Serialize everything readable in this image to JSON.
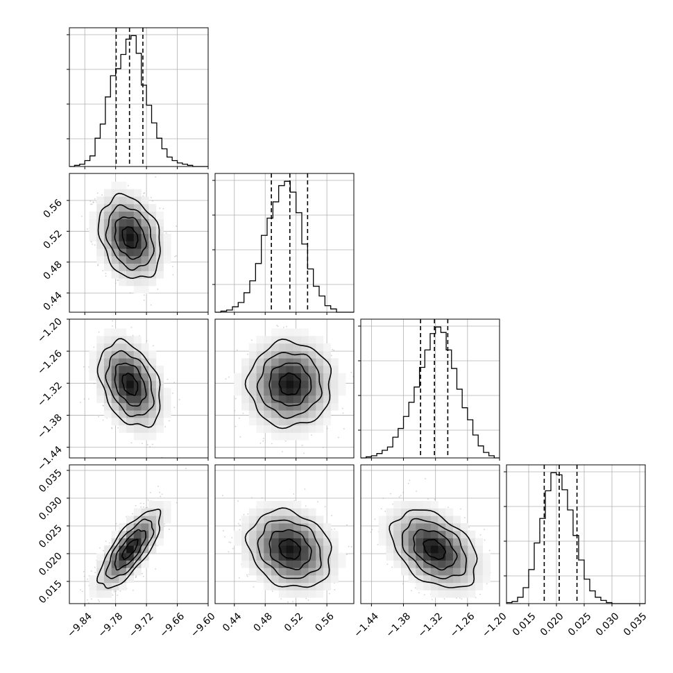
{
  "chart_data": {
    "type": "corner",
    "title": "",
    "parameters": [
      {
        "label": "",
        "range": [
          -9.87,
          -9.6
        ],
        "ticks": [
          -9.84,
          -9.78,
          -9.72,
          -9.66,
          -9.6
        ],
        "tick_labels": [
          "−9.84",
          "−9.78",
          "−9.72",
          "−9.66",
          "−9.60"
        ],
        "quantiles": [
          -9.779,
          -9.753,
          -9.727
        ],
        "histogram": {
          "edges": [
            -9.87,
            -9.86,
            -9.85,
            -9.84,
            -9.83,
            -9.82,
            -9.81,
            -9.8,
            -9.79,
            -9.78,
            -9.77,
            -9.76,
            -9.75,
            -9.74,
            -9.73,
            -9.72,
            -9.71,
            -9.7,
            -9.69,
            -9.68,
            -9.67,
            -9.66,
            -9.65,
            -9.64,
            -9.63,
            -9.62,
            -9.61,
            -9.6
          ],
          "counts": [
            0,
            1,
            2,
            5,
            9,
            24,
            36,
            59,
            77,
            83,
            95,
            108,
            111,
            96,
            69,
            52,
            37,
            24,
            15,
            8,
            5,
            3,
            2,
            1,
            0,
            0,
            0
          ]
        }
      },
      {
        "label": "",
        "range": [
          0.415,
          0.595
        ],
        "ticks": [
          0.44,
          0.48,
          0.52,
          0.56
        ],
        "tick_labels": [
          "0.44",
          "0.48",
          "0.52",
          "0.56"
        ],
        "quantiles": [
          0.488,
          0.512,
          0.535
        ],
        "histogram": {
          "edges": [
            0.415,
            0.4225,
            0.43,
            0.4375,
            0.445,
            0.4525,
            0.46,
            0.4675,
            0.475,
            0.4825,
            0.49,
            0.4975,
            0.505,
            0.5125,
            0.52,
            0.5275,
            0.535,
            0.5425,
            0.55,
            0.5575,
            0.565,
            0.5725,
            0.58,
            0.5875,
            0.595
          ],
          "counts": [
            0,
            1,
            2,
            5,
            9,
            18,
            29,
            45,
            71,
            87,
            102,
            117,
            121,
            111,
            92,
            63,
            40,
            24,
            15,
            6,
            3,
            0,
            0,
            0
          ]
        }
      },
      {
        "label": "",
        "range": [
          -1.46,
          -1.2
        ],
        "ticks": [
          -1.44,
          -1.38,
          -1.32,
          -1.26,
          -1.2
        ],
        "tick_labels": [
          "−1.44",
          "−1.38",
          "−1.32",
          "−1.26",
          "−1.20"
        ],
        "quantiles": [
          -1.348,
          -1.322,
          -1.297
        ],
        "histogram": {
          "edges": [
            -1.46,
            -1.45,
            -1.44,
            -1.43,
            -1.42,
            -1.41,
            -1.4,
            -1.39,
            -1.38,
            -1.37,
            -1.36,
            -1.35,
            -1.34,
            -1.33,
            -1.32,
            -1.31,
            -1.3,
            -1.29,
            -1.28,
            -1.27,
            -1.26,
            -1.25,
            -1.24,
            -1.23,
            -1.22,
            -1.21,
            -1.2
          ],
          "counts": [
            0,
            1,
            2,
            4,
            7,
            10,
            19,
            27,
            38,
            51,
            65,
            83,
            99,
            114,
            120,
            115,
            99,
            82,
            63,
            46,
            35,
            21,
            11,
            5,
            2,
            0
          ]
        }
      },
      {
        "label": "",
        "range": [
          0.011,
          0.036
        ],
        "ticks": [
          0.015,
          0.02,
          0.025,
          0.03,
          0.035
        ],
        "tick_labels": [
          "0.015",
          "0.020",
          "0.025",
          "0.030",
          "0.035"
        ],
        "quantiles": [
          0.0178,
          0.0205,
          0.0237
        ],
        "histogram": {
          "edges": [
            0.011,
            0.012,
            0.013,
            0.014,
            0.015,
            0.016,
            0.017,
            0.018,
            0.019,
            0.02,
            0.021,
            0.022,
            0.023,
            0.024,
            0.025,
            0.026,
            0.027,
            0.028,
            0.029,
            0.03,
            0.031,
            0.032,
            0.033,
            0.034,
            0.035,
            0.036
          ],
          "counts": [
            1,
            2,
            6,
            15,
            32,
            57,
            80,
            106,
            123,
            121,
            107,
            88,
            64,
            41,
            23,
            12,
            6,
            3,
            1,
            0,
            0,
            0,
            0,
            0,
            0
          ]
        }
      }
    ],
    "joint": [
      {
        "x": 0,
        "y": 1,
        "mean": [
          -9.752,
          0.512
        ],
        "sd": [
          0.03,
          0.027
        ],
        "corr": -0.25
      },
      {
        "x": 0,
        "y": 2,
        "mean": [
          -9.752,
          -1.322
        ],
        "sd": [
          0.03,
          0.04
        ],
        "corr": -0.35
      },
      {
        "x": 0,
        "y": 3,
        "mean": [
          -9.752,
          0.0208
        ],
        "sd": [
          0.03,
          0.0035
        ],
        "corr": 0.75
      },
      {
        "x": 1,
        "y": 2,
        "mean": [
          0.512,
          -1.322
        ],
        "sd": [
          0.027,
          0.04
        ],
        "corr": 0.0
      },
      {
        "x": 1,
        "y": 3,
        "mean": [
          0.512,
          0.0208
        ],
        "sd": [
          0.027,
          0.0035
        ],
        "corr": -0.2
      },
      {
        "x": 2,
        "y": 3,
        "mean": [
          -1.322,
          0.0208
        ],
        "sd": [
          0.04,
          0.0035
        ],
        "corr": -0.4
      }
    ],
    "contour_levels_sigma": [
      0.5,
      1.0,
      1.5,
      2.0
    ],
    "grid": true,
    "legend": "none"
  }
}
